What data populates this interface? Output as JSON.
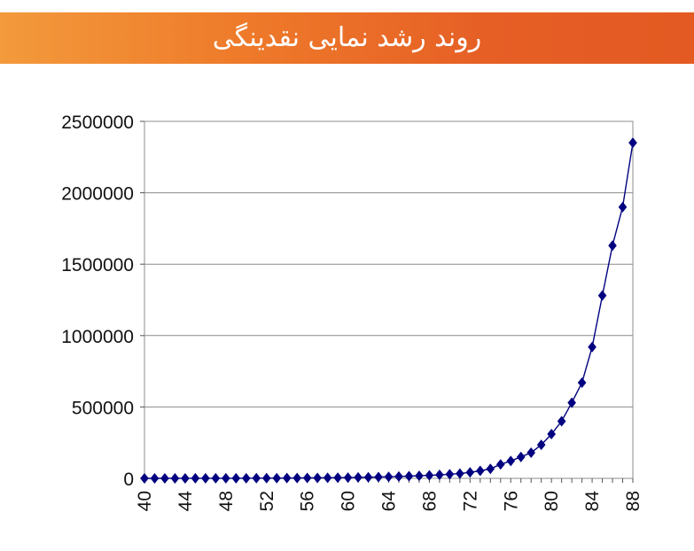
{
  "header": {
    "title": "روند رشد نمایی نقدینگی"
  },
  "colors": {
    "header_start": "#f39a3c",
    "header_end": "#e35a22",
    "series": "#000080",
    "grid": "#8c8c8c"
  },
  "chart_data": {
    "type": "line",
    "title": "",
    "xlabel": "",
    "ylabel": "",
    "xlim": [
      40,
      88
    ],
    "ylim": [
      0,
      2500000
    ],
    "y_ticks": [
      "2500000",
      "2000000",
      "1500000",
      "1000000",
      "500000",
      "0"
    ],
    "x_ticks": [
      "40",
      "44",
      "48",
      "52",
      "56",
      "60",
      "64",
      "68",
      "72",
      "76",
      "80",
      "84",
      "88"
    ],
    "grid": "horizontal",
    "legend": "none",
    "series": [
      {
        "marker": "diamond",
        "x": [
          40,
          41,
          42,
          43,
          44,
          45,
          46,
          47,
          48,
          49,
          50,
          51,
          52,
          53,
          54,
          55,
          56,
          57,
          58,
          59,
          60,
          61,
          62,
          63,
          64,
          65,
          66,
          67,
          68,
          69,
          70,
          71,
          72,
          73,
          74,
          75,
          76,
          77,
          78,
          79,
          80,
          81,
          82,
          83,
          84,
          85,
          86,
          87,
          88
        ],
        "y": [
          200,
          230,
          270,
          320,
          380,
          450,
          540,
          640,
          760,
          900,
          1060,
          1250,
          1480,
          1750,
          2070,
          2450,
          2900,
          3430,
          4060,
          4800,
          5700,
          6700,
          7900,
          9300,
          11000,
          13000,
          15300,
          18000,
          21000,
          24500,
          28500,
          33500,
          42000,
          53000,
          67000,
          98000,
          122000,
          150000,
          180000,
          235000,
          310000,
          400000,
          530000,
          670000,
          920000,
          1280000,
          1630000,
          1900000,
          2350000
        ]
      }
    ]
  }
}
